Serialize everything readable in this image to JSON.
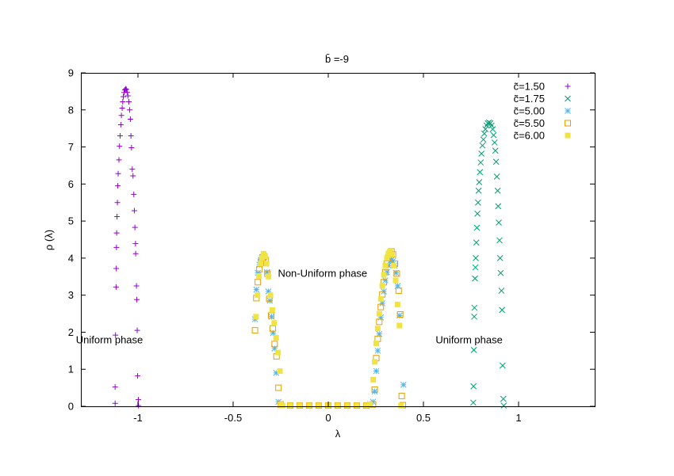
{
  "chart_data": {
    "type": "scatter",
    "title": "b̄ =-9",
    "xlabel": "λ",
    "ylabel": "ρ (λ)",
    "xlim": [
      -1.3,
      1.4
    ],
    "ylim": [
      0,
      9
    ],
    "xticks": [
      {
        "value": -1,
        "label": "-1"
      },
      {
        "value": -0.5,
        "label": "-0.5"
      },
      {
        "value": 0,
        "label": "0"
      },
      {
        "value": 0.5,
        "label": "0.5"
      },
      {
        "value": 1,
        "label": "1"
      }
    ],
    "yticks": [
      {
        "value": 0,
        "label": "0"
      },
      {
        "value": 1,
        "label": "1"
      },
      {
        "value": 2,
        "label": "2"
      },
      {
        "value": 3,
        "label": "3"
      },
      {
        "value": 4,
        "label": "4"
      },
      {
        "value": 5,
        "label": "5"
      },
      {
        "value": 6,
        "label": "6"
      },
      {
        "value": 7,
        "label": "7"
      },
      {
        "value": 8,
        "label": "8"
      },
      {
        "value": 9,
        "label": "9"
      }
    ],
    "grid": false,
    "legend": "top-right",
    "annotations": [
      {
        "text": "Uniform  phase",
        "x": -1.15,
        "y": 1.7
      },
      {
        "text": "Non-Uniform phase",
        "x": -0.03,
        "y": 3.5
      },
      {
        "text": "Uniform  phase",
        "x": 0.74,
        "y": 1.7
      }
    ],
    "series": [
      {
        "name": "c̃=1.50",
        "marker": "plus",
        "color": "#9400d3",
        "points": [
          [
            -1.12,
            0.08
          ],
          [
            -1.12,
            0.52
          ],
          [
            -1.118,
            1.92
          ],
          [
            -1.115,
            3.22
          ],
          [
            -1.114,
            3.72
          ],
          [
            -1.113,
            4.29
          ],
          [
            -1.112,
            4.68
          ],
          [
            -1.11,
            5.12
          ],
          [
            -1.108,
            5.5
          ],
          [
            -1.106,
            5.95
          ],
          [
            -1.104,
            6.28
          ],
          [
            -1.1,
            6.65
          ],
          [
            -1.097,
            7.02
          ],
          [
            -1.094,
            7.3
          ],
          [
            -1.09,
            7.6
          ],
          [
            -1.087,
            7.85
          ],
          [
            -1.083,
            8.05
          ],
          [
            -1.08,
            8.22
          ],
          [
            -1.077,
            8.36
          ],
          [
            -1.073,
            8.47
          ],
          [
            -1.069,
            8.54
          ],
          [
            -1.065,
            8.57
          ],
          [
            -1.061,
            8.55
          ],
          [
            -1.057,
            8.48
          ],
          [
            -1.053,
            8.38
          ],
          [
            -1.048,
            8.22
          ],
          [
            -1.044,
            8.0
          ],
          [
            -1.04,
            7.75
          ],
          [
            -1.037,
            7.3
          ],
          [
            -1.034,
            6.98
          ],
          [
            -1.03,
            6.4
          ],
          [
            -1.026,
            6.22
          ],
          [
            -1.022,
            5.72
          ],
          [
            -1.019,
            5.28
          ],
          [
            -1.016,
            4.83
          ],
          [
            -1.013,
            4.39
          ],
          [
            -1.012,
            4.12
          ],
          [
            -1.008,
            3.25
          ],
          [
            -1.006,
            2.88
          ],
          [
            -1.004,
            2.05
          ],
          [
            -1.002,
            0.82
          ],
          [
            -0.998,
            0.18
          ],
          [
            -0.997,
            0.02
          ]
        ]
      },
      {
        "name": "c̃=1.75",
        "marker": "cross",
        "color": "#009e73",
        "points": [
          [
            0.762,
            0.1
          ],
          [
            0.763,
            0.54
          ],
          [
            0.765,
            1.52
          ],
          [
            0.767,
            2.42
          ],
          [
            0.768,
            2.66
          ],
          [
            0.771,
            3.45
          ],
          [
            0.773,
            3.75
          ],
          [
            0.775,
            4.0
          ],
          [
            0.778,
            4.42
          ],
          [
            0.781,
            4.82
          ],
          [
            0.784,
            5.2
          ],
          [
            0.787,
            5.5
          ],
          [
            0.79,
            5.82
          ],
          [
            0.793,
            6.05
          ],
          [
            0.797,
            6.32
          ],
          [
            0.801,
            6.58
          ],
          [
            0.805,
            6.82
          ],
          [
            0.81,
            7.04
          ],
          [
            0.815,
            7.2
          ],
          [
            0.82,
            7.36
          ],
          [
            0.826,
            7.48
          ],
          [
            0.832,
            7.58
          ],
          [
            0.838,
            7.64
          ],
          [
            0.845,
            7.66
          ],
          [
            0.852,
            7.64
          ],
          [
            0.858,
            7.58
          ],
          [
            0.864,
            7.48
          ],
          [
            0.869,
            7.32
          ],
          [
            0.874,
            7.12
          ],
          [
            0.878,
            6.9
          ],
          [
            0.882,
            6.6
          ],
          [
            0.886,
            6.2
          ],
          [
            0.89,
            5.82
          ],
          [
            0.893,
            5.4
          ],
          [
            0.896,
            4.96
          ],
          [
            0.9,
            4.48
          ],
          [
            0.903,
            4.0
          ],
          [
            0.906,
            3.6
          ],
          [
            0.91,
            3.12
          ],
          [
            0.913,
            2.6
          ],
          [
            0.916,
            1.1
          ],
          [
            0.92,
            0.2
          ],
          [
            0.922,
            0.02
          ]
        ]
      },
      {
        "name": "c̃=5.00",
        "marker": "star",
        "color": "#56b4e9",
        "points": [
          [
            -0.385,
            2.35
          ],
          [
            -0.378,
            3.15
          ],
          [
            -0.37,
            3.6
          ],
          [
            -0.362,
            3.82
          ],
          [
            -0.354,
            3.95
          ],
          [
            -0.346,
            3.98
          ],
          [
            -0.338,
            3.95
          ],
          [
            -0.33,
            3.85
          ],
          [
            -0.322,
            3.62
          ],
          [
            -0.315,
            3.1
          ],
          [
            -0.307,
            2.85
          ],
          [
            -0.298,
            2.42
          ],
          [
            -0.29,
            1.98
          ],
          [
            -0.282,
            1.56
          ],
          [
            -0.274,
            0.9
          ],
          [
            -0.262,
            0.12
          ],
          [
            -0.25,
            0.04
          ],
          [
            -0.2,
            0.02
          ],
          [
            -0.15,
            0.02
          ],
          [
            -0.1,
            0.02
          ],
          [
            -0.05,
            0.02
          ],
          [
            0.0,
            0.02
          ],
          [
            0.05,
            0.02
          ],
          [
            0.1,
            0.02
          ],
          [
            0.15,
            0.02
          ],
          [
            0.2,
            0.03
          ],
          [
            0.22,
            0.06
          ],
          [
            0.235,
            0.12
          ],
          [
            0.244,
            0.4
          ],
          [
            0.252,
            0.95
          ],
          [
            0.26,
            1.5
          ],
          [
            0.268,
            1.95
          ],
          [
            0.276,
            2.4
          ],
          [
            0.284,
            2.78
          ],
          [
            0.292,
            3.1
          ],
          [
            0.3,
            3.4
          ],
          [
            0.308,
            3.62
          ],
          [
            0.316,
            3.8
          ],
          [
            0.324,
            3.92
          ],
          [
            0.332,
            3.95
          ],
          [
            0.34,
            3.92
          ],
          [
            0.348,
            3.8
          ],
          [
            0.356,
            3.6
          ],
          [
            0.365,
            3.25
          ],
          [
            0.375,
            2.45
          ],
          [
            0.395,
            0.58
          ]
        ]
      },
      {
        "name": "c̃=5.50",
        "marker": "square-open",
        "color": "#e69f00",
        "points": [
          [
            -0.385,
            2.05
          ],
          [
            -0.378,
            2.92
          ],
          [
            -0.37,
            3.35
          ],
          [
            -0.362,
            3.7
          ],
          [
            -0.354,
            3.9
          ],
          [
            -0.346,
            4.02
          ],
          [
            -0.338,
            4.05
          ],
          [
            -0.33,
            3.95
          ],
          [
            -0.32,
            3.58
          ],
          [
            -0.31,
            2.9
          ],
          [
            -0.3,
            2.45
          ],
          [
            -0.292,
            2.1
          ],
          [
            -0.282,
            1.68
          ],
          [
            -0.272,
            1.35
          ],
          [
            -0.262,
            0.5
          ],
          [
            -0.25,
            0.05
          ],
          [
            -0.2,
            0.02
          ],
          [
            -0.15,
            0.02
          ],
          [
            -0.1,
            0.02
          ],
          [
            -0.05,
            0.02
          ],
          [
            0.0,
            0.02
          ],
          [
            0.05,
            0.02
          ],
          [
            0.1,
            0.02
          ],
          [
            0.15,
            0.02
          ],
          [
            0.2,
            0.02
          ],
          [
            0.235,
            0.05
          ],
          [
            0.244,
            0.45
          ],
          [
            0.252,
            1.3
          ],
          [
            0.26,
            1.82
          ],
          [
            0.268,
            2.28
          ],
          [
            0.276,
            2.68
          ],
          [
            0.284,
            3.02
          ],
          [
            0.292,
            3.35
          ],
          [
            0.3,
            3.62
          ],
          [
            0.308,
            3.85
          ],
          [
            0.316,
            4.02
          ],
          [
            0.324,
            4.12
          ],
          [
            0.332,
            4.18
          ],
          [
            0.34,
            4.1
          ],
          [
            0.35,
            3.85
          ],
          [
            0.36,
            3.58
          ],
          [
            0.37,
            3.12
          ],
          [
            0.378,
            2.48
          ],
          [
            0.386,
            0.28
          ],
          [
            0.392,
            0.03
          ]
        ]
      },
      {
        "name": "c̃=6.00",
        "marker": "square-filled",
        "color": "#f0e442",
        "points": [
          [
            -0.38,
            2.42
          ],
          [
            -0.372,
            3.0
          ],
          [
            -0.364,
            3.52
          ],
          [
            -0.356,
            3.85
          ],
          [
            -0.348,
            4.0
          ],
          [
            -0.34,
            4.12
          ],
          [
            -0.332,
            4.05
          ],
          [
            -0.324,
            3.85
          ],
          [
            -0.314,
            3.5
          ],
          [
            -0.304,
            3.0
          ],
          [
            -0.294,
            2.6
          ],
          [
            -0.284,
            2.25
          ],
          [
            -0.274,
            1.85
          ],
          [
            -0.264,
            1.45
          ],
          [
            -0.254,
            0.95
          ],
          [
            -0.25,
            0.05
          ],
          [
            -0.24,
            0.02
          ],
          [
            -0.2,
            0.02
          ],
          [
            -0.15,
            0.02
          ],
          [
            -0.1,
            0.02
          ],
          [
            -0.05,
            0.02
          ],
          [
            0.0,
            0.02
          ],
          [
            0.05,
            0.02
          ],
          [
            0.1,
            0.02
          ],
          [
            0.15,
            0.02
          ],
          [
            0.2,
            0.02
          ],
          [
            0.22,
            0.05
          ],
          [
            0.236,
            0.72
          ],
          [
            0.244,
            1.2
          ],
          [
            0.252,
            1.7
          ],
          [
            0.26,
            2.1
          ],
          [
            0.268,
            2.5
          ],
          [
            0.276,
            2.9
          ],
          [
            0.284,
            3.25
          ],
          [
            0.292,
            3.55
          ],
          [
            0.3,
            3.8
          ],
          [
            0.308,
            4.0
          ],
          [
            0.316,
            4.12
          ],
          [
            0.324,
            4.18
          ],
          [
            0.334,
            4.1
          ],
          [
            0.344,
            3.8
          ],
          [
            0.354,
            3.4
          ],
          [
            0.364,
            2.75
          ],
          [
            0.374,
            2.18
          ],
          [
            0.382,
            0.02
          ]
        ]
      }
    ]
  }
}
